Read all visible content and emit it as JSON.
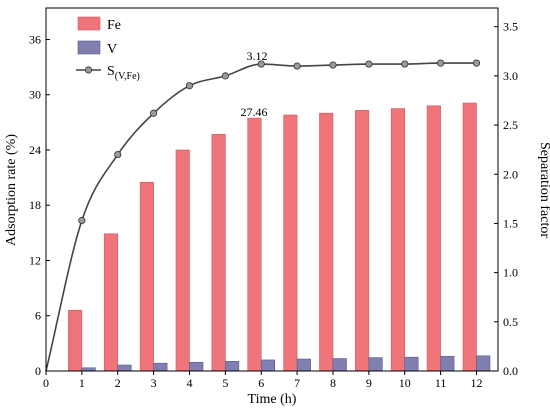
{
  "chart_data": {
    "type": "bar",
    "x": [
      1,
      2,
      3,
      4,
      5,
      6,
      7,
      8,
      9,
      10,
      11,
      12
    ],
    "series": [
      {
        "name": "Fe",
        "kind": "bar",
        "axis": "left",
        "color": "#f0757a",
        "values": [
          6.6,
          14.9,
          20.5,
          24.0,
          25.7,
          27.46,
          27.8,
          28.0,
          28.3,
          28.5,
          28.8,
          29.1
        ]
      },
      {
        "name": "V",
        "kind": "bar",
        "axis": "left",
        "color": "#8080b0",
        "values": [
          0.35,
          0.65,
          0.85,
          0.95,
          1.05,
          1.2,
          1.3,
          1.35,
          1.45,
          1.5,
          1.6,
          1.65
        ]
      },
      {
        "name_main": "S",
        "name_sub": "(V,Fe)",
        "kind": "line",
        "axis": "right",
        "color": "#444444",
        "values": [
          1.53,
          2.2,
          2.62,
          2.9,
          3.0,
          3.12,
          3.1,
          3.11,
          3.12,
          3.12,
          3.13,
          3.13
        ]
      }
    ],
    "xlabel": "Time (h)",
    "ylabel": "Adsorption rate (%)",
    "y2label": "Separation factor",
    "xlim": [
      0,
      12.6
    ],
    "ylim": [
      0,
      39.42
    ],
    "y2lim": [
      0,
      3.69
    ],
    "xticks": [
      "0",
      "1",
      "2",
      "3",
      "4",
      "5",
      "6",
      "7",
      "8",
      "9",
      "10",
      "11",
      "12"
    ],
    "yticks": [
      "0",
      "6",
      "12",
      "18",
      "24",
      "30",
      "36"
    ],
    "y2ticks": [
      "0.0",
      "0.5",
      "1.0",
      "1.5",
      "2.0",
      "2.5",
      "3.0",
      "3.5"
    ],
    "annotations": [
      "27.46",
      "3.12"
    ],
    "legend": "top-left",
    "grid": false
  }
}
